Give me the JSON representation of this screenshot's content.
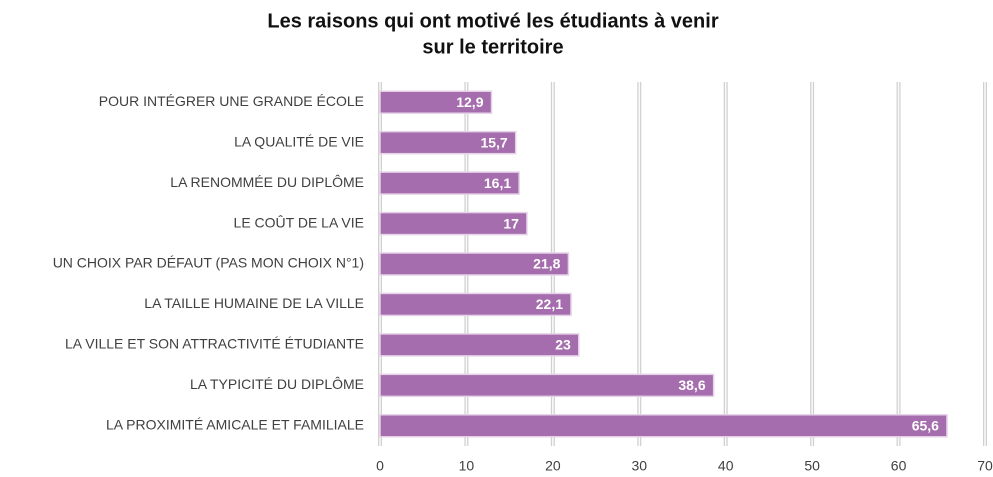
{
  "chart_data": {
    "type": "bar",
    "title": "Les raisons qui ont motivé les étudiants à venir",
    "subtitle": "sur le territoire",
    "categories": [
      "POUR INTÉGRER UNE GRANDE ÉCOLE",
      "LA QUALITÉ DE VIE",
      "LA RENOMMÉE DU DIPLÔME",
      "LE COÛT DE LA VIE",
      "UN CHOIX PAR DÉFAUT (PAS MON CHOIX N°1)",
      "LA TAILLE HUMAINE DE LA VILLE",
      "LA VILLE ET SON ATTRACTIVITÉ ÉTUDIANTE",
      "LA TYPICITÉ DU DIPLÔME",
      "LA PROXIMITÉ AMICALE ET FAMILIALE"
    ],
    "values": [
      12.9,
      15.7,
      16.1,
      17,
      21.8,
      22.1,
      23,
      38.6,
      65.6
    ],
    "value_labels": [
      "12,9",
      "15,7",
      "16,1",
      "17",
      "21,8",
      "22,1",
      "23",
      "38,6",
      "65,6"
    ],
    "color": "#a56dad",
    "xlim": [
      0,
      70
    ],
    "xticks": [
      0,
      10,
      20,
      30,
      40,
      50,
      60,
      70
    ],
    "grid": true
  }
}
